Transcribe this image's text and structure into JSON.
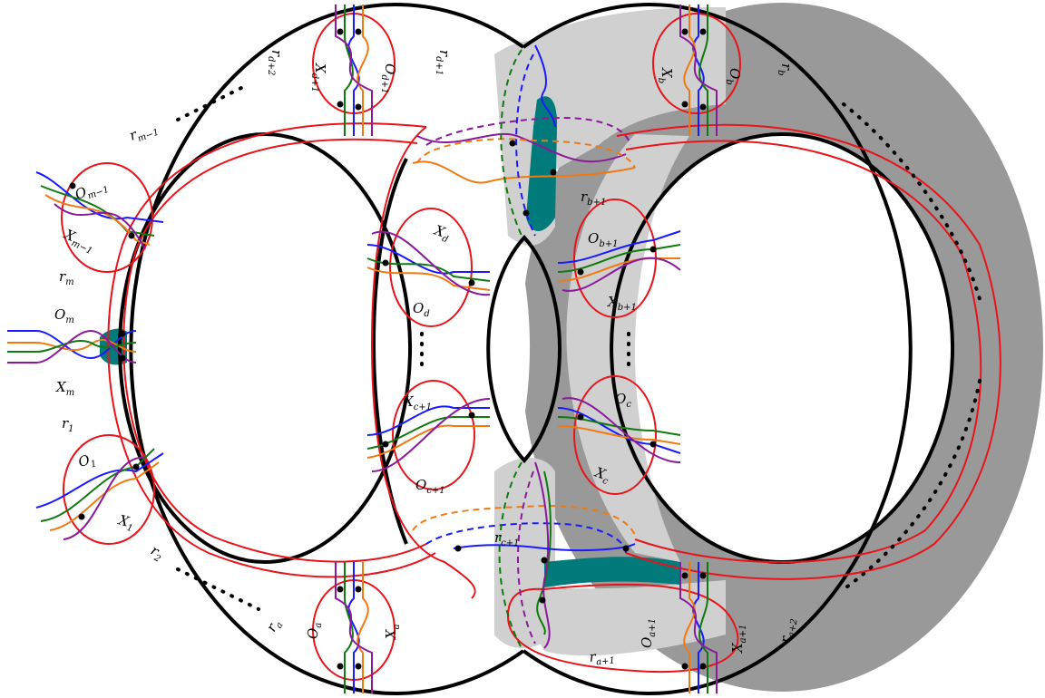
{
  "labels": {
    "O_d1": "O",
    "O_d1_sub": "d+1",
    "X_d1": "X",
    "X_d1_sub": "d+1",
    "r_d1": "r",
    "r_d1_sub": "d+1",
    "r_d2": "r",
    "r_d2_sub": "d+2",
    "r_m1": "r",
    "r_m1_sub": "m−1",
    "O_m1": "O",
    "O_m1_sub": "m−1",
    "X_m1": "X",
    "X_m1_sub": "m−1",
    "r_m": "r",
    "r_m_sub": "m",
    "O_m": "O",
    "O_m_sub": "m",
    "X_m": "X",
    "X_m_sub": "m",
    "r_1": "r",
    "r_1_sub": "1",
    "O_1": "O",
    "O_1_sub": "1",
    "X_1": "X",
    "X_1_sub": "1",
    "r_2": "r",
    "r_2_sub": "2",
    "r_a": "r",
    "r_a_sub": "a",
    "O_a": "O",
    "O_a_sub": "a",
    "X_a": "X",
    "X_a_sub": "a",
    "X_d": "X",
    "X_d_sub": "d",
    "O_d": "O",
    "O_d_sub": "d",
    "X_c1": "X",
    "X_c1_sub": "c+1",
    "O_c1": "O",
    "O_c1_sub": "c+1",
    "r_c1": "r",
    "r_c1_sub": "c+1",
    "X_b": "X",
    "X_b_sub": "b",
    "O_b": "O",
    "O_b_sub": "b",
    "r_b": "r",
    "r_b_sub": "b",
    "r_b1": "r",
    "r_b1_sub": "b+1",
    "O_b1": "O",
    "O_b1_sub": "b+1",
    "X_b1": "X",
    "X_b1_sub": "b+1",
    "O_c": "O",
    "O_c_sub": "c",
    "X_c": "X",
    "X_c_sub": "c",
    "O_a1": "O",
    "O_a1_sub": "a+1",
    "X_a1": "X",
    "X_a1_sub": "a+1",
    "r_a1": "r",
    "r_a1_sub": "a+1",
    "r_a2": "r",
    "r_a2_sub": "a+2"
  },
  "colors": {
    "outline": "#000000",
    "dark_gray": "#999999",
    "light_gray": "#d0d0d0",
    "teal": "#007a7a",
    "red": "#e8141b",
    "blue": "#1a1aff",
    "green": "#0f7a0f",
    "orange": "#f07a10",
    "purple": "#8a1a9a"
  }
}
